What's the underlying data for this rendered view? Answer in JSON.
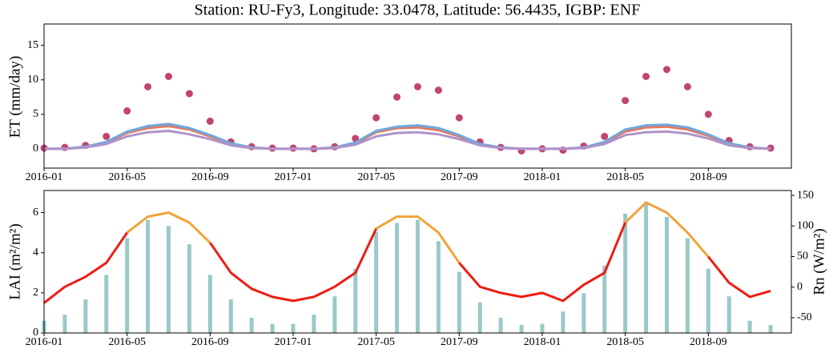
{
  "chart_data": [
    {
      "type": "line",
      "title": "Station: RU-Fy3, Longitude: 33.0478, Latitude: 56.4435, IGBP: ENF",
      "y_label": "ET (mm/day)",
      "x": [
        "2016-01",
        "2016-02",
        "2016-03",
        "2016-04",
        "2016-05",
        "2016-06",
        "2016-07",
        "2016-08",
        "2016-09",
        "2016-10",
        "2016-11",
        "2016-12",
        "2017-01",
        "2017-02",
        "2017-03",
        "2017-04",
        "2017-05",
        "2017-06",
        "2017-07",
        "2017-08",
        "2017-09",
        "2017-10",
        "2017-11",
        "2017-12",
        "2018-01",
        "2018-02",
        "2018-03",
        "2018-04",
        "2018-05",
        "2018-06",
        "2018-07",
        "2018-08",
        "2018-09",
        "2018-10",
        "2018-11",
        "2018-12"
      ],
      "xlim": [
        "2016-01",
        "2019-01"
      ],
      "xticks": [
        "2016-01",
        "2016-05",
        "2016-09",
        "2017-01",
        "2017-05",
        "2017-09",
        "2018-01",
        "2018-05",
        "2018-09"
      ],
      "ylim": [
        -2.8,
        18.1
      ],
      "yticks": [
        0,
        5,
        10,
        15
      ],
      "series": [
        {
          "type": "scatter",
          "color": "#c2446e",
          "values": [
            0.1,
            0.2,
            0.5,
            1.8,
            5.5,
            9,
            10.5,
            8,
            4,
            1,
            0.3,
            0.1,
            0.1,
            0,
            0.3,
            1.5,
            4.5,
            7.5,
            9,
            8.5,
            4.5,
            1,
            0.2,
            -0.3,
            0,
            -0.2,
            0.4,
            1.8,
            7,
            10.5,
            11.5,
            9,
            5,
            1.2,
            0.3,
            0.1
          ]
        },
        {
          "type": "line",
          "color": "#e9775c",
          "values": [
            0,
            0,
            0.3,
            0.9,
            2.3,
            3,
            3.3,
            2.8,
            1.8,
            0.7,
            0.2,
            0,
            0,
            0,
            0.2,
            0.8,
            2.4,
            3,
            3.1,
            2.7,
            1.8,
            0.6,
            0.2,
            0,
            0,
            0,
            0.2,
            0.9,
            2.5,
            3.1,
            3.2,
            2.8,
            1.9,
            0.7,
            0.2,
            0
          ]
        },
        {
          "type": "line",
          "color": "#6fa8dc",
          "values": [
            0,
            0,
            0.3,
            1,
            2.5,
            3.3,
            3.6,
            3,
            2,
            0.8,
            0.2,
            0,
            0,
            0,
            0.2,
            0.9,
            2.6,
            3.2,
            3.4,
            3,
            2,
            0.7,
            0.2,
            0,
            0,
            0,
            0.2,
            1,
            2.8,
            3.4,
            3.5,
            3.1,
            2.1,
            0.8,
            0.2,
            0
          ]
        },
        {
          "type": "line",
          "color": "#b093c9",
          "values": [
            0,
            0,
            0.2,
            0.7,
            1.8,
            2.4,
            2.6,
            2.1,
            1.4,
            0.5,
            0.1,
            0,
            0,
            0,
            0.1,
            0.6,
            1.8,
            2.3,
            2.4,
            2.1,
            1.4,
            0.5,
            0.1,
            0,
            0,
            0,
            0.1,
            0.7,
            2,
            2.4,
            2.5,
            2.2,
            1.5,
            0.5,
            0.1,
            0
          ]
        }
      ]
    },
    {
      "type": "line",
      "y_label": "LAI (m²/m²)",
      "y2_label": "Rn (W/m²)",
      "x": [
        "2016-01",
        "2016-02",
        "2016-03",
        "2016-04",
        "2016-05",
        "2016-06",
        "2016-07",
        "2016-08",
        "2016-09",
        "2016-10",
        "2016-11",
        "2016-12",
        "2017-01",
        "2017-02",
        "2017-03",
        "2017-04",
        "2017-05",
        "2017-06",
        "2017-07",
        "2017-08",
        "2017-09",
        "2017-10",
        "2017-11",
        "2017-12",
        "2018-01",
        "2018-02",
        "2018-03",
        "2018-04",
        "2018-05",
        "2018-06",
        "2018-07",
        "2018-08",
        "2018-09",
        "2018-10",
        "2018-11",
        "2018-12"
      ],
      "xlim": [
        "2016-01",
        "2019-01"
      ],
      "xticks": [
        "2016-01",
        "2016-05",
        "2016-09",
        "2017-01",
        "2017-05",
        "2017-09",
        "2018-01",
        "2018-05",
        "2018-09"
      ],
      "ylim": [
        0,
        7.1
      ],
      "yticks": [
        0,
        2,
        4,
        6
      ],
      "y2lim": [
        -75,
        158
      ],
      "y2ticks": [
        -50,
        0,
        50,
        100,
        150
      ],
      "series": [
        {
          "type": "bar",
          "axis": "y2",
          "color": "#7fbcbc",
          "values": [
            -55,
            -45,
            -20,
            20,
            80,
            110,
            100,
            70,
            20,
            -20,
            -50,
            -60,
            -60,
            -45,
            -15,
            30,
            90,
            105,
            110,
            75,
            25,
            -25,
            -50,
            -62,
            -60,
            -40,
            -10,
            35,
            120,
            140,
            115,
            80,
            30,
            -15,
            -55,
            -62
          ]
        },
        {
          "type": "line",
          "color": "#f2a33a",
          "values": [
            null,
            null,
            null,
            null,
            5,
            5.8,
            6,
            5.5,
            4.5,
            null,
            null,
            null,
            null,
            null,
            null,
            null,
            5.2,
            5.8,
            5.8,
            5,
            3.5,
            null,
            null,
            null,
            null,
            null,
            null,
            null,
            5.5,
            6.5,
            6,
            5,
            3.8,
            null,
            null,
            null
          ]
        },
        {
          "type": "line",
          "color": "#ee1c12",
          "values": [
            1.5,
            2.3,
            2.8,
            3.5,
            5,
            null,
            null,
            null,
            4.5,
            3,
            2.2,
            1.8,
            1.6,
            1.8,
            2.3,
            3,
            5.2,
            null,
            null,
            null,
            3.5,
            2.3,
            2,
            1.8,
            2,
            1.6,
            2.4,
            3,
            5.5,
            null,
            null,
            null,
            3.8,
            2.5,
            1.8,
            2.1
          ]
        }
      ]
    }
  ]
}
